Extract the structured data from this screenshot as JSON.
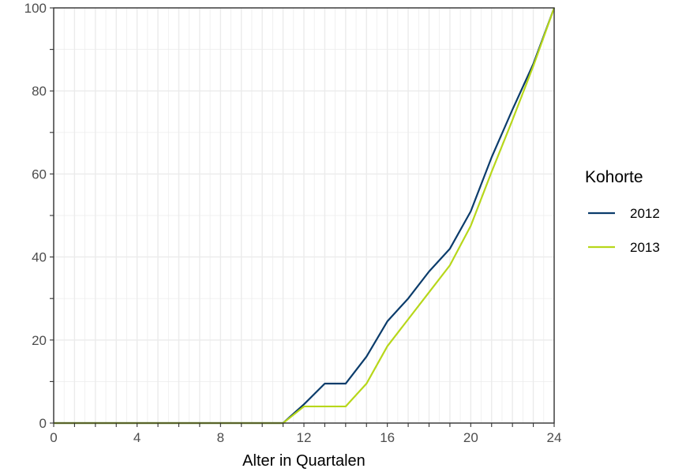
{
  "chart_data": {
    "type": "line",
    "xlabel": "Alter in Quartalen",
    "ylabel": "",
    "xlim": [
      0,
      24
    ],
    "ylim": [
      0,
      100
    ],
    "x_ticks": [
      0,
      4,
      8,
      12,
      16,
      20,
      24
    ],
    "y_ticks": [
      0,
      20,
      40,
      60,
      80,
      100
    ],
    "grid": true,
    "legend": {
      "title": "Kohorte",
      "position": "right"
    },
    "x": [
      0,
      1,
      2,
      3,
      4,
      5,
      6,
      7,
      8,
      9,
      10,
      11,
      12,
      13,
      14,
      15,
      16,
      17,
      18,
      19,
      20,
      21,
      22,
      23,
      24
    ],
    "series": [
      {
        "name": "2012",
        "color": "#0b3c6b",
        "values": [
          0,
          0,
          0,
          0,
          0,
          0,
          0,
          0,
          0,
          0,
          0,
          0,
          4.5,
          9.5,
          9.5,
          16,
          24.5,
          30,
          36.5,
          42,
          51,
          64,
          75.5,
          86.5,
          100
        ]
      },
      {
        "name": "2013",
        "color": "#b7d71a",
        "values": [
          0,
          0,
          0,
          0,
          0,
          0,
          0,
          0,
          0,
          0,
          0,
          0,
          4,
          4,
          4,
          9.5,
          18.5,
          25,
          31.5,
          38,
          47.5,
          60.5,
          73,
          86,
          100
        ]
      }
    ]
  }
}
